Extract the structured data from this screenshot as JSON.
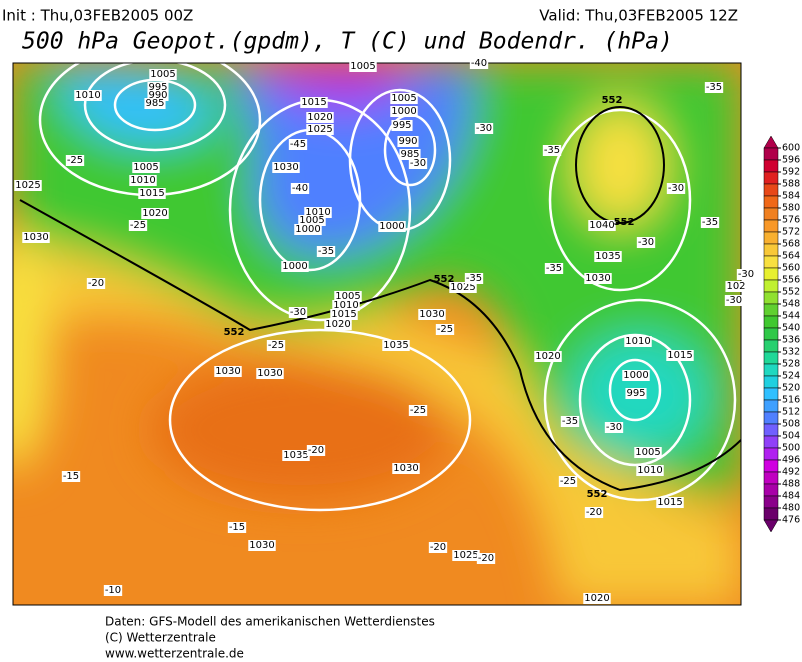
{
  "header": {
    "init": "Init : Thu,03FEB2005 00Z",
    "valid": "Valid: Thu,03FEB2005 12Z",
    "title": "500 hPa Geopot.(gpdm), T (C) und Bodendr. (hPa)"
  },
  "colorbar": {
    "ticks": [
      600,
      596,
      592,
      588,
      584,
      580,
      576,
      572,
      568,
      564,
      560,
      556,
      552,
      548,
      544,
      540,
      536,
      532,
      528,
      524,
      520,
      516,
      512,
      508,
      504,
      500,
      496,
      492,
      488,
      484,
      480,
      476
    ],
    "colors": [
      "#b0004a",
      "#d00030",
      "#e02020",
      "#e84818",
      "#f06818",
      "#f08020",
      "#f89828",
      "#f8b030",
      "#f8c838",
      "#f8e040",
      "#e8f030",
      "#c0f030",
      "#90e030",
      "#60d030",
      "#40c830",
      "#30c848",
      "#28d070",
      "#20d898",
      "#20d8c0",
      "#20d0e0",
      "#30c0ff",
      "#3fa0ff",
      "#5080ff",
      "#7060ff",
      "#9040f8",
      "#b020f0",
      "#d000e0",
      "#c000c0",
      "#a800a8",
      "#8a008a",
      "#6a006a"
    ]
  },
  "map": {
    "isobar_labels": [
      "1005",
      "1010",
      "995",
      "990",
      "985",
      "1005",
      "1010",
      "1015",
      "1020",
      "1025",
      "1030",
      "1015",
      "1020",
      "1025",
      "1030",
      "1010",
      "1005",
      "1000",
      "1000",
      "1005",
      "1000",
      "995",
      "990",
      "985",
      "1000",
      "1005",
      "1010",
      "1015",
      "1020",
      "1025",
      "1030",
      "1035",
      "1030",
      "1030",
      "1035",
      "1030",
      "1030",
      "1040",
      "1035",
      "1030",
      "1010",
      "1015",
      "1000",
      "995",
      "1020",
      "1005",
      "1010",
      "1015",
      "1025",
      "1020",
      "102",
      "1005"
    ],
    "temperature_labels": [
      "-45",
      "-40",
      "-35",
      "-30",
      "-30",
      "-25",
      "-25",
      "-20",
      "-30",
      "-25",
      "-25",
      "-35",
      "-35",
      "-35",
      "-30",
      "-30",
      "-35",
      "-35",
      "-30",
      "-30",
      "-30",
      "-35",
      "-25",
      "-20",
      "-15",
      "-15",
      "-10",
      "-20",
      "-20",
      "-25",
      "-20",
      "-40"
    ],
    "height_labels": [
      "552",
      "552",
      "552",
      "552",
      "552"
    ]
  },
  "footer": [
    "Daten: GFS-Modell des amerikanischen Wetterdienstes",
    "(C) Wetterzentrale",
    "www.wetterzentrale.de"
  ]
}
